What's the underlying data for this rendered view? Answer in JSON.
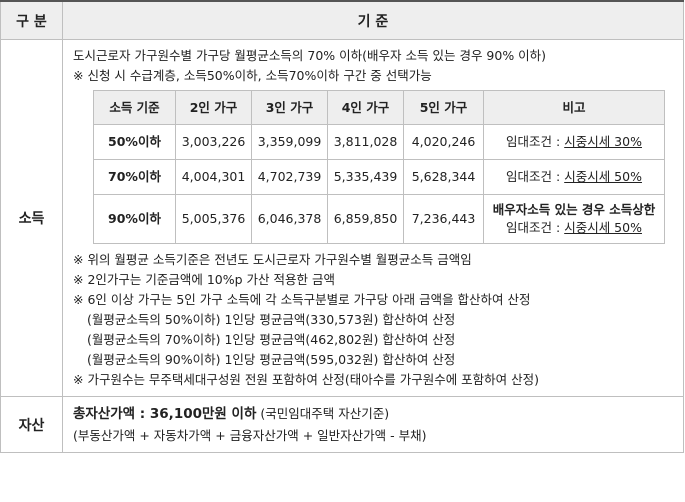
{
  "header": {
    "col1": "구 분",
    "col2": "기 준"
  },
  "income": {
    "label": "소득",
    "intro": [
      "도시근로자 가구원수별 가구당 월평균소득의 70% 이하(배우자 소득 있는 경우 90% 이하)",
      "※ 신청 시 수급계층, 소득50%이하, 소득70%이하 구간 중 선택가능"
    ],
    "table": {
      "headers": [
        "소득 기준",
        "2인 가구",
        "3인 가구",
        "4인 가구",
        "5인 가구",
        "비고"
      ],
      "rows": [
        {
          "criterion": "50%이하",
          "v2": "3,003,226",
          "v3": "3,359,099",
          "v4": "3,811,028",
          "v5": "4,020,246",
          "note_prefix": "임대조건 : ",
          "note_link": "시중시세 30%"
        },
        {
          "criterion": "70%이하",
          "v2": "4,004,301",
          "v3": "4,702,739",
          "v4": "5,335,439",
          "v5": "5,628,344",
          "note_prefix": "임대조건 : ",
          "note_link": "시중시세 50%"
        },
        {
          "criterion": "90%이하",
          "v2": "5,005,376",
          "v3": "6,046,378",
          "v4": "6,859,850",
          "v5": "7,236,443",
          "note_bold": "배우자소득 있는 경우 소득상한",
          "note_prefix": "임대조건 : ",
          "note_link": "시중시세 50%"
        }
      ]
    },
    "notes": [
      "※ 위의 월평균 소득기준은 전년도 도시근로자 가구원수별 월평균소득 금액임",
      "※ 2인가구는 기준금액에 10%p 가산 적용한 금액",
      "※ 6인 이상 가구는 5인 가구 소득에 각 소득구분별로 가구당 아래 금액을 합산하여 산정",
      "(월평균소득의 50%이하) 1인당 평균금액(330,573원) 합산하여 산정",
      "(월평균소득의 70%이하) 1인당 평균금액(462,802원) 합산하여 산정",
      "(월평균소득의 90%이하) 1인당 평균금액(595,032원) 합산하여 산정",
      "※ 가구원수는 무주택세대구성원 전원 포함하여 산정(태아수를 가구원수에 포함하여 산정)"
    ]
  },
  "assets": {
    "label": "자산",
    "line1_bold": "총자산가액 : 36,100만원 이하",
    "line1_rest": " (국민임대주택 자산기준)",
    "line2": "(부동산가액 + 자동차가액 + 금융자산가액 + 일반자산가액 - 부채)"
  }
}
